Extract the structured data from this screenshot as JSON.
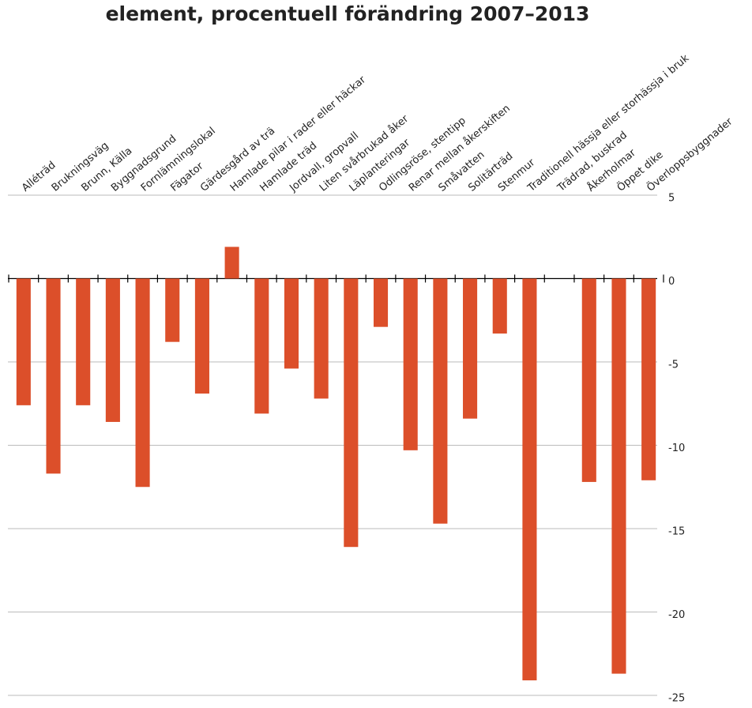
{
  "chart_data": {
    "type": "bar",
    "title": "element, procentuell förändring 2007–2013",
    "categories": [
      "Alléträd",
      "Brukningsväg",
      "Brunn, Källa",
      "Byggnadsgrund",
      "Fornlämningslokal",
      "Fägator",
      "Gärdesgård av trä",
      "Hamlade pilar i rader eller häckar",
      "Hamlade träd",
      "Jordvall, gropvall",
      "Liten svårbrukad åker",
      "Läplanteringar",
      "Odlingsröse, stentipp",
      "Renar mellan åkerskiften",
      "Småvatten",
      "Solitärträd",
      "Stenmur",
      "Traditionell hässja eller storhässja i bruk",
      "Trädrad, buskrad",
      "Åkerholmar",
      "Öppet dike",
      "Överloppsbyggnader"
    ],
    "values": [
      -7.6,
      -11.7,
      -7.6,
      -8.6,
      -12.5,
      -3.8,
      -6.9,
      1.9,
      -8.1,
      -5.4,
      -7.2,
      -16.1,
      -2.9,
      -10.3,
      -14.7,
      -8.4,
      -3.3,
      -24.1,
      null,
      -12.2,
      -23.7,
      -12.1
    ],
    "color": "#dc4f2a",
    "ylim": [
      -25,
      5
    ],
    "yticks": [
      5,
      0,
      -5,
      -10,
      -15,
      -20,
      -25
    ],
    "grid": true
  }
}
